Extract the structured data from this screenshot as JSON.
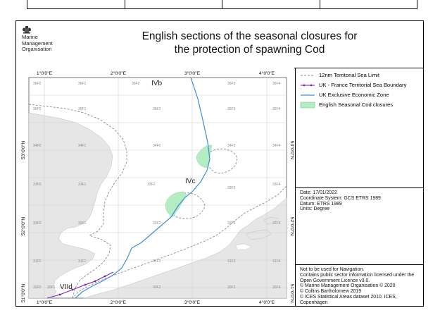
{
  "title": {
    "line1": "English sections of the seasonal closures for",
    "line2": "the protection of spawning Cod"
  },
  "logo": {
    "icon": "crest-icon",
    "line1": "Marine",
    "line2": "Management",
    "line3": "Organisation"
  },
  "map": {
    "lon_labels": [
      "1°0'0\"E",
      "2°0'0\"E",
      "3°0'0\"E",
      "4°0'0\"E"
    ],
    "lat_labels": [
      "53°0'0\"N",
      "52°0'0\"N",
      "51°0'0\"N"
    ],
    "area_labels": [
      "IVb",
      "IVc",
      "VIId"
    ],
    "rectangles": {
      "row1": [
        "36F0",
        "36F1",
        "36F2",
        "36F3",
        "36F4"
      ],
      "row2": [
        "35F0",
        "35F1",
        "35F2",
        "35F3",
        "35F4"
      ],
      "row3": [
        "34F0",
        "34F1",
        "34F2",
        "34F3",
        "34F4"
      ],
      "row4": [
        "33F0",
        "33F1",
        "33F2",
        "33F3",
        "33F4"
      ],
      "row5": [
        "32F0",
        "32F1",
        "32F2",
        "32F3",
        "32F4"
      ],
      "row6": [
        "31F0",
        "31F1",
        "31F2",
        "31F3",
        "31F4"
      ],
      "row7": [
        "30F0",
        "30F1",
        "30F2",
        "30F3",
        "30F4"
      ]
    },
    "colors": {
      "land": "#e6e6e6",
      "eez_line": "#3d8fd6",
      "closure_fill": "#b4ecc4",
      "boundary_line": "#7a1fa8",
      "grid": "#d0d0d0"
    }
  },
  "legend": {
    "items": [
      {
        "label": "12nm Territorial Sea Limit",
        "symbol": "dashed-gray-line"
      },
      {
        "label": "UK - France Territorial Sea Boundary",
        "symbol": "purple-dotted-line"
      },
      {
        "label": "UK Exclusive Economic Zone",
        "symbol": "blue-line"
      },
      {
        "label": "English Seasonal Cod closures",
        "symbol": "green-patch"
      }
    ]
  },
  "info": {
    "date": "Date: 17/01/2022",
    "crs": "Coordinate System: GCS ETRS 1989",
    "datum": "Datum: ETRS 1989",
    "units": "Units: Degree"
  },
  "disclaimer": {
    "l1": "Not to be used for Navigation.",
    "l2": "Contains public sector information licensed under the",
    "l3": "Open Government Licence v3.0.",
    "l4": "© Marine Management Organisation © 2020",
    "l5": "© Collins Bartholomew 2019",
    "l6": "© ICES Statistical Areas dataset 2010. ICES,",
    "l7": "Copenhagen"
  }
}
